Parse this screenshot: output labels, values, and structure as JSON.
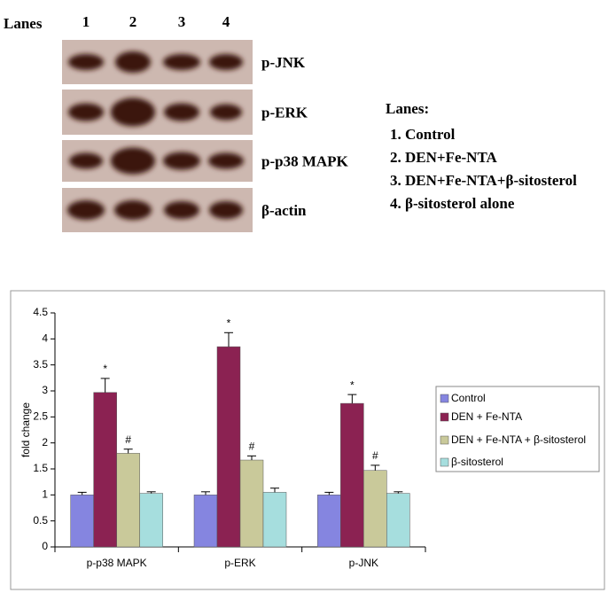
{
  "blot": {
    "lanes_label": "Lanes",
    "lane_numbers": [
      "1",
      "2",
      "3",
      "4"
    ],
    "proteins": [
      "p-JNK",
      "p-ERK",
      "p-p38 MAPK",
      "β-actin"
    ],
    "legend": {
      "title": "Lanes:",
      "items": [
        "1. Control",
        "2. DEN+Fe-NTA",
        "3. DEN+Fe-NTA+β-sitosterol",
        "4. β-sitosterol alone"
      ]
    }
  },
  "chart_data": {
    "type": "bar",
    "y_label": "fold change",
    "categories": [
      "p-p38 MAPK",
      "p-ERK",
      "p-JNK"
    ],
    "series": [
      {
        "name": "Control",
        "color": "#8585e0",
        "values": [
          1.0,
          1.0,
          1.0
        ],
        "errors": [
          0.05,
          0.06,
          0.05
        ]
      },
      {
        "name": "DEN + Fe-NTA",
        "color": "#8b2252",
        "values": [
          2.97,
          3.85,
          2.76
        ],
        "errors": [
          0.27,
          0.27,
          0.17
        ],
        "annotations": [
          "*",
          "*",
          "*"
        ]
      },
      {
        "name": "DEN + Fe-NTA + β-sitosterol",
        "color": "#c9c99a",
        "values": [
          1.8,
          1.67,
          1.47
        ],
        "errors": [
          0.08,
          0.08,
          0.1
        ],
        "annotations": [
          "#",
          "#",
          "#"
        ]
      },
      {
        "name": "β-sitosterol",
        "color": "#a6dede",
        "values": [
          1.03,
          1.05,
          1.03
        ],
        "errors": [
          0.03,
          0.08,
          0.03
        ]
      }
    ],
    "ylim": [
      0,
      4.5
    ],
    "yticks": [
      0,
      0.5,
      1,
      1.5,
      2,
      2.5,
      3,
      3.5,
      4,
      4.5
    ],
    "grid": false,
    "legend": "right"
  }
}
